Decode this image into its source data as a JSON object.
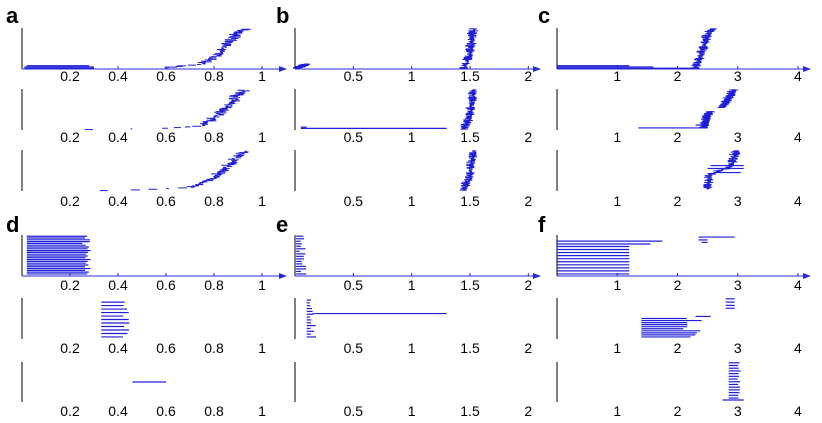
{
  "panel_labels": [
    "a",
    "b",
    "c",
    "d",
    "e",
    "f"
  ],
  "colors": {
    "series": "#1f1fd8",
    "axis_plain": "#000000",
    "axis_arrow": "#2a2ad8"
  },
  "chart_data": [
    {
      "panel": "a",
      "type": "scatter",
      "xlim": [
        0,
        1.1
      ],
      "xticks": [
        "0.2",
        "0.4",
        "0.6",
        "0.8",
        "1"
      ],
      "xtick_values": [
        0.2,
        0.4,
        0.6,
        0.8,
        1.0
      ],
      "rows": [
        {
          "axis_arrow": true,
          "lines": [
            [
              0.01,
              0.3,
              0.02
            ],
            [
              0.01,
              0.3,
              0.05
            ],
            [
              0.02,
              0.28,
              0.08
            ]
          ],
          "curves": [
            {
              "points": [
                [
                  0.6,
                  0.03
                ],
                [
                  0.75,
                  0.12
                ],
                [
                  0.82,
                  0.35
                ],
                [
                  0.86,
                  0.62
                ],
                [
                  0.9,
                  0.85
                ],
                [
                  0.93,
                  0.97
                ]
              ],
              "x_jitter": 0.015
            }
          ]
        },
        {
          "axis_arrow": false,
          "lines": [],
          "curves": [
            {
              "points": [
                [
                  0.28,
                  0.01
                ],
                [
                  0.4,
                  0.02
                ],
                [
                  0.6,
                  0.04
                ],
                [
                  0.75,
                  0.1
                ],
                [
                  0.82,
                  0.35
                ],
                [
                  0.87,
                  0.62
                ],
                [
                  0.9,
                  0.85
                ],
                [
                  0.93,
                  0.97
                ]
              ],
              "x_jitter": 0.015
            }
          ]
        },
        {
          "axis_arrow": false,
          "lines": [],
          "curves": [
            {
              "points": [
                [
                  0.35,
                  0.01
                ],
                [
                  0.5,
                  0.03
                ],
                [
                  0.7,
                  0.08
                ],
                [
                  0.8,
                  0.3
                ],
                [
                  0.86,
                  0.6
                ],
                [
                  0.9,
                  0.85
                ],
                [
                  0.94,
                  0.97
                ]
              ],
              "x_jitter": 0.012
            }
          ]
        }
      ]
    },
    {
      "panel": "b",
      "type": "scatter",
      "xlim": [
        0,
        2.1
      ],
      "xticks": [
        "0.5",
        "1",
        "1.5",
        "2"
      ],
      "xtick_values": [
        0.5,
        1.0,
        1.5,
        2.0
      ],
      "rows": [
        {
          "axis_arrow": true,
          "lines": [],
          "curves": [
            {
              "points": [
                [
                  0.02,
                  0.02
                ],
                [
                  0.06,
                  0.06
                ],
                [
                  0.1,
                  0.12
                ]
              ],
              "x_jitter": 0.01
            },
            {
              "points": [
                [
                  1.45,
                  0.02
                ],
                [
                  1.5,
                  0.3
                ],
                [
                  1.52,
                  0.7
                ],
                [
                  1.53,
                  0.98
                ]
              ],
              "x_jitter": 0.01
            }
          ]
        },
        {
          "axis_arrow": false,
          "lines": [
            [
              0.05,
              1.3,
              0.04
            ],
            [
              0.05,
              0.1,
              0.07
            ]
          ],
          "curves": [
            {
              "points": [
                [
                  1.45,
                  0.02
                ],
                [
                  1.5,
                  0.3
                ],
                [
                  1.52,
                  0.7
                ],
                [
                  1.54,
                  0.98
                ]
              ],
              "x_jitter": 0.01
            }
          ]
        },
        {
          "axis_arrow": false,
          "lines": [],
          "curves": [
            {
              "points": [
                [
                  1.45,
                  0.02
                ],
                [
                  1.5,
                  0.3
                ],
                [
                  1.52,
                  0.7
                ],
                [
                  1.54,
                  0.98
                ]
              ],
              "x_jitter": 0.01
            }
          ]
        }
      ]
    },
    {
      "panel": "c",
      "type": "scatter",
      "xlim": [
        0,
        4.2
      ],
      "xticks": [
        "1",
        "2",
        "3",
        "4"
      ],
      "xtick_values": [
        1,
        2,
        3,
        4
      ],
      "rows": [
        {
          "axis_arrow": true,
          "lines": [
            [
              0,
              2.35,
              0.02
            ],
            [
              0,
              1.6,
              0.05
            ],
            [
              0,
              1.2,
              0.08
            ]
          ],
          "curves": [
            {
              "points": [
                [
                  2.3,
                  0.03
                ],
                [
                  2.4,
                  0.3
                ],
                [
                  2.45,
                  0.6
                ],
                [
                  2.52,
                  0.85
                ],
                [
                  2.6,
                  0.98
                ]
              ],
              "x_jitter": 0.02
            }
          ]
        },
        {
          "axis_arrow": false,
          "lines": [
            [
              1.35,
              2.5,
              0.05
            ],
            [
              2.3,
              2.5,
              0.12
            ]
          ],
          "curves": [
            {
              "points": [
                [
                  2.45,
                  0.05
                ],
                [
                  2.5,
                  0.3
                ],
                [
                  2.55,
                  0.45
                ]
              ],
              "x_jitter": 0.015
            },
            {
              "points": [
                [
                  2.75,
                  0.55
                ],
                [
                  2.85,
                  0.75
                ],
                [
                  2.95,
                  0.98
                ]
              ],
              "x_jitter": 0.02
            }
          ]
        },
        {
          "axis_arrow": false,
          "lines": [
            [
              2.5,
              3.1,
              0.55
            ],
            [
              2.55,
              3.1,
              0.62
            ],
            [
              2.6,
              3.05,
              0.45
            ]
          ],
          "curves": [
            {
              "points": [
                [
                  2.5,
                  0.05
                ],
                [
                  2.55,
                  0.4
                ],
                [
                  2.9,
                  0.6
                ],
                [
                  2.95,
                  0.85
                ],
                [
                  3.0,
                  0.98
                ]
              ],
              "x_jitter": 0.02
            }
          ]
        }
      ]
    },
    {
      "panel": "d",
      "type": "bar",
      "xlim": [
        0,
        1.1
      ],
      "xticks": [
        "0.2",
        "0.4",
        "0.6",
        "0.8",
        "1"
      ],
      "xtick_values": [
        0.2,
        0.4,
        0.6,
        0.8,
        1.0
      ],
      "rows": [
        {
          "axis_arrow": true,
          "band": {
            "x0": 0.02,
            "x1": 0.29,
            "x1_spread": 0.04,
            "y0": 0.05,
            "y1": 0.97,
            "count": 22
          },
          "lines": [],
          "curves": []
        },
        {
          "axis_arrow": false,
          "band": {
            "x0": 0.33,
            "x1": 0.45,
            "x1_spread": 0.03,
            "y0": 0.05,
            "y1": 0.9,
            "count": 11
          },
          "lines": [],
          "curves": []
        },
        {
          "axis_arrow": false,
          "band": null,
          "lines": [
            [
              0.46,
              0.6,
              0.5
            ]
          ],
          "curves": []
        }
      ]
    },
    {
      "panel": "e",
      "type": "bar",
      "xlim": [
        0,
        2.1
      ],
      "xticks": [
        "0.5",
        "1",
        "1.5",
        "2"
      ],
      "xtick_values": [
        0.5,
        1.0,
        1.5,
        2.0
      ],
      "rows": [
        {
          "axis_arrow": true,
          "band": {
            "x0": 0.01,
            "x1": 0.1,
            "x1_spread": 0.06,
            "y0": 0.05,
            "y1": 0.97,
            "count": 16
          },
          "lines": [],
          "curves": []
        },
        {
          "axis_arrow": false,
          "band": {
            "x0": 0.1,
            "x1": 0.18,
            "x1_spread": 0.06,
            "y0": 0.05,
            "y1": 0.95,
            "count": 14
          },
          "lines": [
            [
              0.15,
              1.3,
              0.62
            ]
          ],
          "curves": []
        },
        {
          "axis_arrow": false,
          "band": null,
          "lines": [],
          "curves": []
        }
      ]
    },
    {
      "panel": "f",
      "type": "bar",
      "xlim": [
        0,
        4.2
      ],
      "xticks": [
        "1",
        "2",
        "3",
        "4"
      ],
      "xtick_values": [
        1,
        2,
        3,
        4
      ],
      "rows": [
        {
          "axis_arrow": true,
          "band": {
            "x0": 0.0,
            "x1": 1.2,
            "x1_spread": 0.0,
            "y0": 0.05,
            "y1": 0.72,
            "count": 10
          },
          "lines": [
            [
              0,
              1.75,
              0.85
            ],
            [
              0,
              1.55,
              0.78
            ],
            [
              2.35,
              2.95,
              0.95
            ],
            [
              2.35,
              2.5,
              0.88
            ],
            [
              2.4,
              2.5,
              0.82
            ]
          ],
          "curves": []
        },
        {
          "axis_arrow": false,
          "band": {
            "x0": 1.4,
            "x1": 2.55,
            "x1_spread": 0.5,
            "y0": 0.05,
            "y1": 0.5,
            "count": 10
          },
          "lines": [
            [
              2.8,
              2.95,
              0.98
            ],
            [
              2.8,
              2.95,
              0.9
            ],
            [
              2.8,
              2.95,
              0.82
            ],
            [
              2.8,
              2.95,
              0.75
            ],
            [
              2.3,
              2.55,
              0.55
            ]
          ],
          "curves": []
        },
        {
          "axis_arrow": false,
          "band": {
            "x0": 2.85,
            "x1": 3.05,
            "x1_spread": 0.05,
            "y0": 0.1,
            "y1": 0.98,
            "count": 14
          },
          "lines": [
            [
              2.75,
              3.1,
              0.05
            ]
          ],
          "curves": []
        }
      ]
    }
  ]
}
